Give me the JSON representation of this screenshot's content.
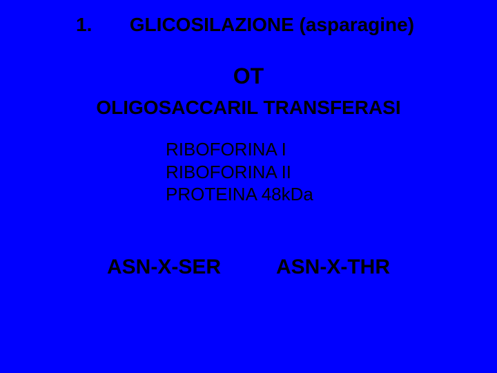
{
  "colors": {
    "background": "#0000ff",
    "text": "#000000"
  },
  "typography": {
    "font_family": "Comic Sans MS",
    "title_fontsize": 28,
    "ot_fontsize": 32,
    "enzyme_fontsize": 28,
    "list_fontsize": 26,
    "seq_fontsize": 30
  },
  "header": {
    "number": "1.",
    "title": "GLICOSILAZIONE (asparagine)"
  },
  "ot_label": "OT",
  "enzyme_name": "OLIGOSACCARIL TRANSFERASI",
  "components": {
    "item1": "RIBOFORINA I",
    "item2": "RIBOFORINA II",
    "item3": "PROTEINA 48kDa"
  },
  "sequences": {
    "left": "ASN-X-SER",
    "right": "ASN-X-THR"
  }
}
